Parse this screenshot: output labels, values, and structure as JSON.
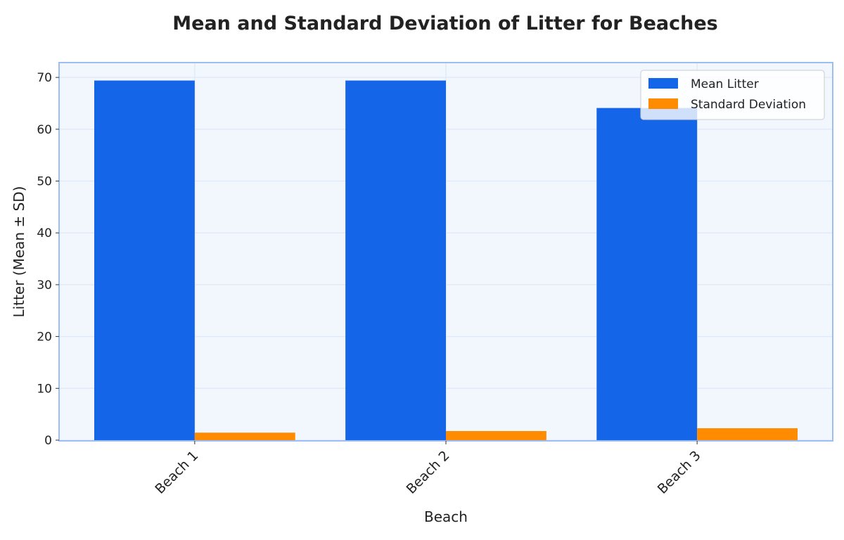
{
  "chart_data": {
    "type": "bar",
    "title": "Mean and Standard Deviation of Litter for Beaches",
    "xlabel": "Beach",
    "ylabel": "Litter (Mean ± SD)",
    "categories": [
      "Beach 1",
      "Beach 2",
      "Beach 3"
    ],
    "series": [
      {
        "name": "Mean Litter",
        "values": [
          69.4,
          69.4,
          64.1
        ],
        "color": "#1565E8"
      },
      {
        "name": "Standard Deviation",
        "values": [
          1.45,
          1.76,
          2.3
        ],
        "color": "#FF8C00"
      }
    ],
    "ylim": [
      0,
      73
    ],
    "yticks": [
      0,
      10,
      20,
      30,
      40,
      50,
      60,
      70
    ],
    "grid": true,
    "legend": "top-right",
    "plot_background": "#F2F7FE",
    "frame_color": "#9DBEF5"
  }
}
